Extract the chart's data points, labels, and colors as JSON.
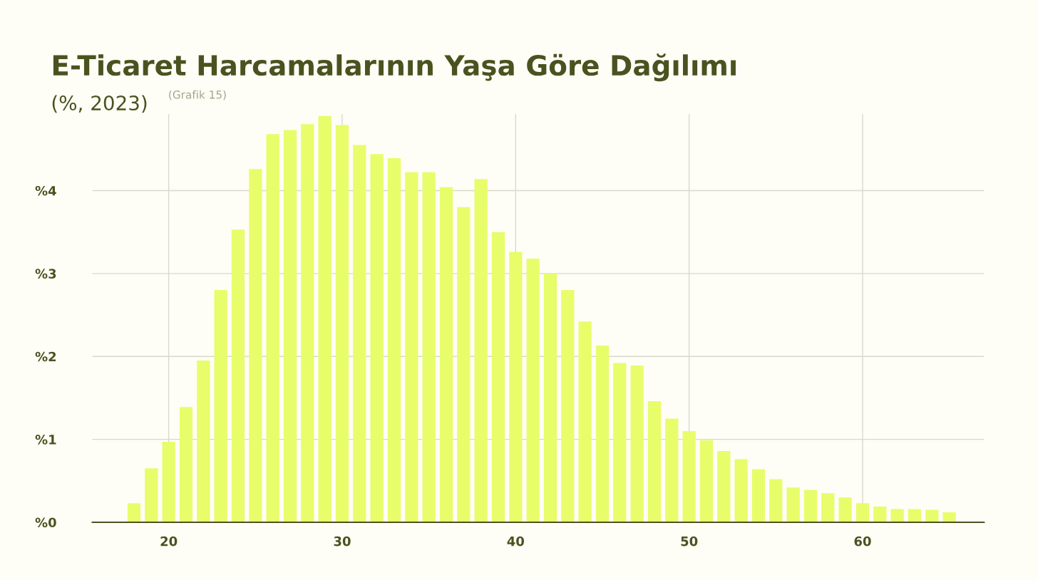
{
  "chart_data": {
    "type": "bar",
    "title": "E-Ticaret Harcamalarının Yaşa Göre Dağılımı",
    "subtitle": "(%, 2023)",
    "annotations": [
      "(Grafik 15)"
    ],
    "x": [
      18,
      19,
      20,
      21,
      22,
      23,
      24,
      25,
      26,
      27,
      28,
      29,
      30,
      31,
      32,
      33,
      34,
      35,
      36,
      37,
      38,
      39,
      40,
      41,
      42,
      43,
      44,
      45,
      46,
      47,
      48,
      49,
      50,
      51,
      52,
      53,
      54,
      55,
      56,
      57,
      58,
      59,
      60,
      61,
      62,
      63,
      64,
      65
    ],
    "values": [
      0.23,
      0.65,
      0.97,
      1.39,
      1.95,
      2.8,
      3.53,
      4.26,
      4.68,
      4.73,
      4.8,
      4.9,
      4.79,
      4.55,
      4.44,
      4.39,
      4.22,
      4.22,
      4.04,
      3.8,
      4.14,
      3.5,
      3.26,
      3.18,
      3.0,
      2.8,
      2.42,
      2.13,
      1.92,
      1.89,
      1.46,
      1.25,
      1.1,
      0.99,
      0.86,
      0.76,
      0.64,
      0.52,
      0.42,
      0.39,
      0.35,
      0.3,
      0.23,
      0.19,
      0.16,
      0.16,
      0.15,
      0.12
    ],
    "color": "#e8fd6a",
    "xlim": [
      15.6,
      67.0
    ],
    "xticks": [
      20,
      30,
      40,
      50,
      60
    ],
    "ylim": [
      0,
      4.92
    ],
    "yticks": [
      {
        "value": 0,
        "label": "%0"
      },
      {
        "value": 1,
        "label": "%1"
      },
      {
        "value": 2,
        "label": "%2"
      },
      {
        "value": 3,
        "label": "%3"
      },
      {
        "value": 4,
        "label": "%4"
      }
    ],
    "grid": true,
    "legend": false
  }
}
